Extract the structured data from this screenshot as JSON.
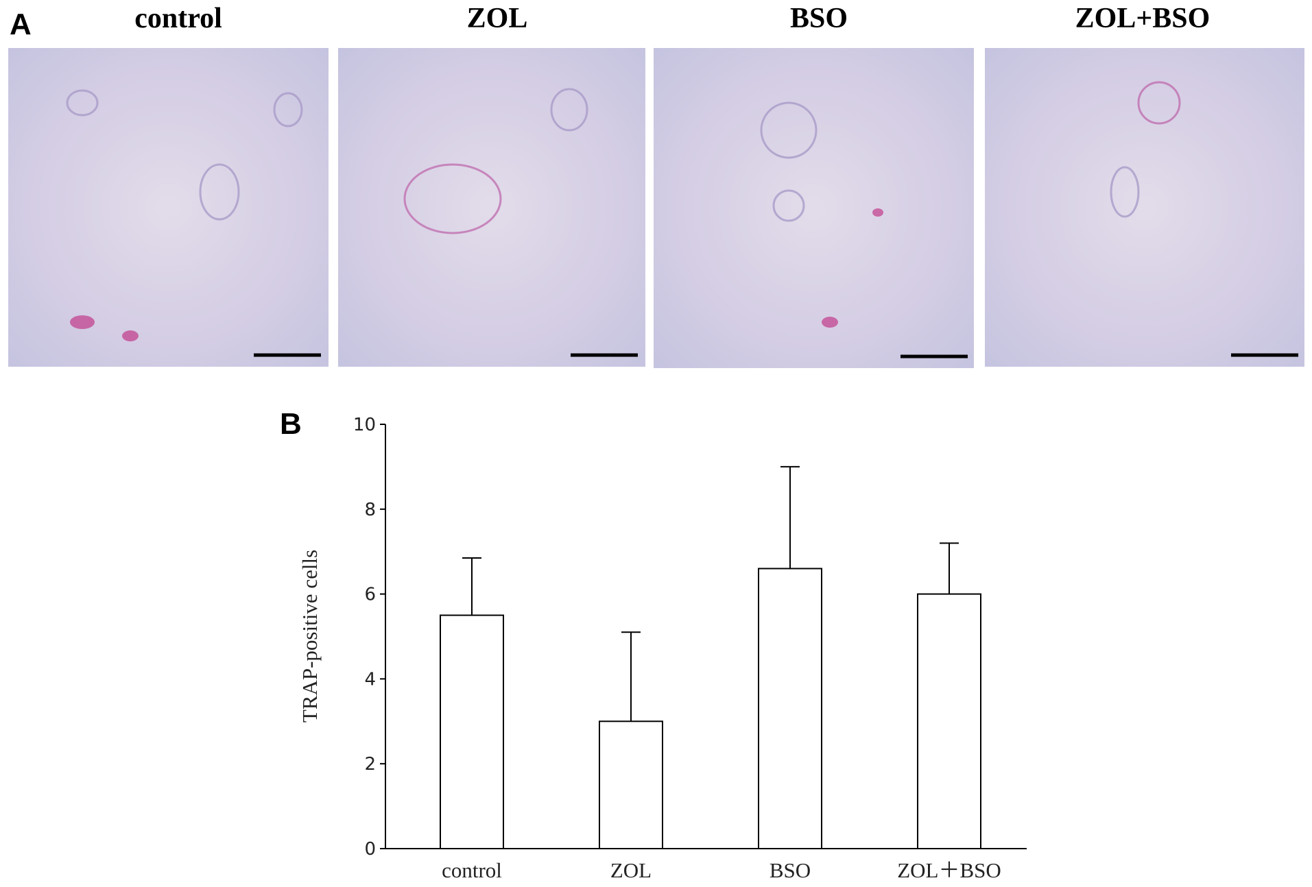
{
  "panel_a": {
    "label": "A",
    "images": [
      {
        "title": "control"
      },
      {
        "title": "ZOL"
      },
      {
        "title": "BSO"
      },
      {
        "title": "ZOL+BSO"
      }
    ]
  },
  "panel_b": {
    "label": "B"
  },
  "chart_data": {
    "type": "bar",
    "y_label": "TRAP-positive cells",
    "categories": [
      "control",
      "ZOL",
      "BSO",
      "ZOL＋BSO"
    ],
    "values": [
      5.5,
      3.0,
      6.6,
      6.0
    ],
    "errors": [
      1.35,
      2.1,
      2.4,
      1.2
    ],
    "color": "#ffffff",
    "ylim": [
      0,
      10
    ],
    "yticks": [
      0,
      2,
      4,
      6,
      8,
      10
    ],
    "grid": false
  }
}
